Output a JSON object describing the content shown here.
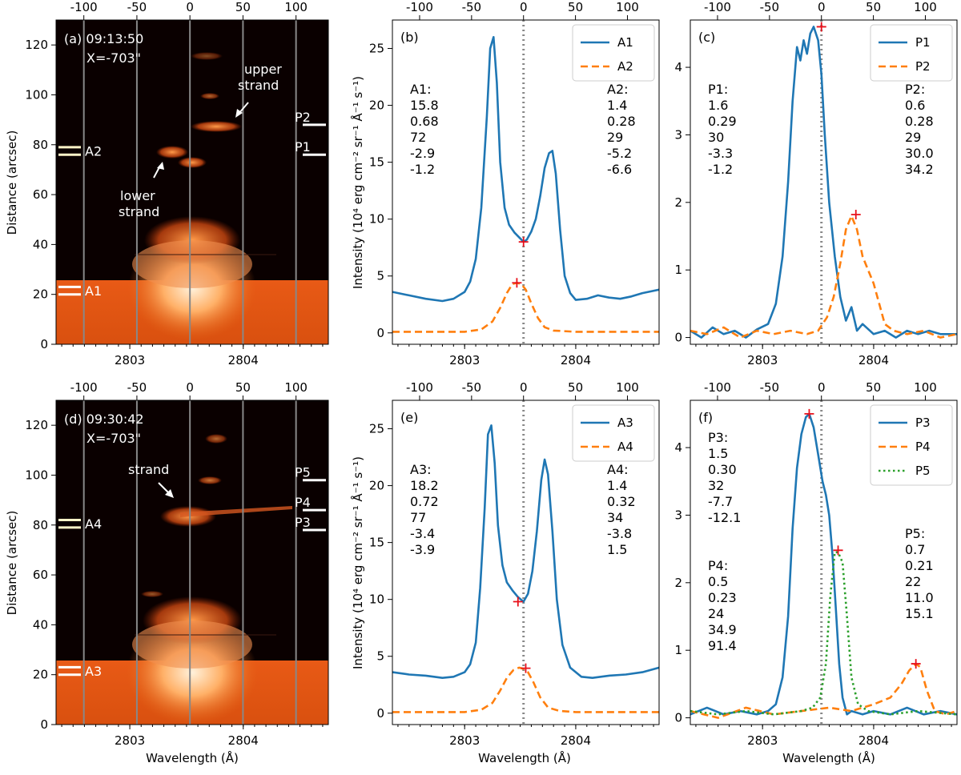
{
  "panels": {
    "a": {
      "label": "(a)",
      "time": "09:13:50",
      "x": "X=-703\"",
      "notes": [
        "upper strand",
        "lower strand"
      ],
      "markers": [
        {
          "label": "A1",
          "y": [
            20,
            23
          ],
          "color": "#ffffff"
        },
        {
          "label": "A2",
          "y": [
            76,
            79
          ],
          "color": "#fff3c8"
        }
      ],
      "plabels": [
        {
          "label": "P2",
          "y": 88
        },
        {
          "label": "P1",
          "y": 76
        }
      ]
    },
    "d": {
      "label": "(d)",
      "time": "09:30:42",
      "x": "X=-703\"",
      "notes": [
        "strand"
      ],
      "markers": [
        {
          "label": "A3",
          "y": [
            20,
            23
          ],
          "color": "#ffffff"
        },
        {
          "label": "A4",
          "y": [
            79,
            82
          ],
          "color": "#fff3c8"
        }
      ],
      "plabels": [
        {
          "label": "P5",
          "y": 98
        },
        {
          "label": "P4",
          "y": 86
        },
        {
          "label": "P3",
          "y": 78
        }
      ]
    },
    "b": {
      "label": "(b)",
      "stats": [
        {
          "title": "A1:",
          "lines": [
            "15.8",
            "0.68",
            "72",
            "-2.9",
            "-1.2"
          ]
        },
        {
          "title": "A2:",
          "lines": [
            "1.4",
            "0.28",
            "29",
            "-5.2",
            "-6.6"
          ]
        }
      ]
    },
    "c": {
      "label": "(c)",
      "stats": [
        {
          "title": "P1:",
          "lines": [
            "1.6",
            "0.29",
            "30",
            "-3.3",
            "-1.2"
          ]
        },
        {
          "title": "P2:",
          "lines": [
            "0.6",
            "0.28",
            "29",
            "30.0",
            "34.2"
          ]
        }
      ]
    },
    "e": {
      "label": "(e)",
      "stats": [
        {
          "title": "A3:",
          "lines": [
            "18.2",
            "0.72",
            "77",
            "-3.4",
            "-3.9"
          ]
        },
        {
          "title": "A4:",
          "lines": [
            "1.4",
            "0.32",
            "34",
            "-3.8",
            "1.5"
          ]
        }
      ]
    },
    "f": {
      "label": "(f)",
      "stats": [
        {
          "title": "P3:",
          "lines": [
            "1.5",
            "0.30",
            "32",
            "-7.7",
            "-12.1"
          ]
        },
        {
          "title": "P4:",
          "lines": [
            "0.5",
            "0.23",
            "24",
            "34.9",
            "91.4"
          ]
        },
        {
          "title": "P5:",
          "lines": [
            "0.7",
            "0.21",
            "22",
            "11.0",
            "15.1"
          ]
        }
      ]
    }
  },
  "axis_titles": {
    "ydistance": "Distance (arcsec)",
    "xwave": "Wavelength (Å)",
    "yintensity": "Intensity (10⁴ erg cm⁻² sr⁻¹ Å⁻¹ s⁻¹)"
  },
  "colors": {
    "blue": "#1f77b4",
    "orange": "#ff7f0e",
    "green": "#2ca02c",
    "red": "#e8101a",
    "gray": "#888888"
  },
  "chart_data": [
    {
      "type": "heatmap",
      "panel": "a",
      "xlabel": "Wavelength (Å)",
      "ylabel": "Distance (arcsec)",
      "xlim": [
        2802.35,
        2804.75
      ],
      "ylim": [
        0,
        130
      ],
      "xticks": [
        2803,
        2804
      ],
      "yticks": [
        0,
        20,
        40,
        60,
        80,
        100,
        120
      ],
      "top_xticks": [
        -100,
        -50,
        0,
        50,
        100
      ],
      "velocity_lines_kms": [
        -100,
        -50,
        0,
        50,
        100
      ]
    },
    {
      "type": "heatmap",
      "panel": "d",
      "xlabel": "Wavelength (Å)",
      "ylabel": "Distance (arcsec)",
      "xlim": [
        2802.35,
        2804.75
      ],
      "ylim": [
        0,
        130
      ],
      "xticks": [
        2803,
        2804
      ],
      "yticks": [
        0,
        20,
        40,
        60,
        80,
        100,
        120
      ],
      "top_xticks": [
        -100,
        -50,
        0,
        50,
        100
      ],
      "velocity_lines_kms": [
        -100,
        -50,
        0,
        50,
        100
      ]
    },
    {
      "type": "line",
      "panel": "b",
      "xlim": [
        2802.35,
        2804.75
      ],
      "ylim": [
        -1,
        27.5
      ],
      "yticks": [
        0,
        5,
        10,
        15,
        20,
        25
      ],
      "xticks": [
        2803,
        2804
      ],
      "top_xticks": [
        -100,
        -50,
        0,
        50,
        100
      ],
      "zero_line": 2803.53,
      "series": [
        {
          "name": "A1",
          "style": "solid",
          "color": "#1f77b4",
          "x": [
            2802.35,
            2802.5,
            2802.65,
            2802.8,
            2802.9,
            2803.0,
            2803.05,
            2803.1,
            2803.15,
            2803.2,
            2803.23,
            2803.26,
            2803.29,
            2803.32,
            2803.36,
            2803.4,
            2803.45,
            2803.5,
            2803.53,
            2803.56,
            2803.6,
            2803.64,
            2803.68,
            2803.72,
            2803.76,
            2803.79,
            2803.82,
            2803.86,
            2803.9,
            2803.95,
            2804.0,
            2804.1,
            2804.2,
            2804.3,
            2804.4,
            2804.5,
            2804.6,
            2804.75
          ],
          "y": [
            3.6,
            3.3,
            3.0,
            2.8,
            3.0,
            3.6,
            4.5,
            6.5,
            11,
            19,
            25,
            26,
            22,
            15,
            11,
            9.5,
            8.8,
            8.3,
            8.0,
            8.2,
            8.9,
            10,
            12,
            14.5,
            15.8,
            16,
            14,
            9,
            5,
            3.5,
            2.9,
            3.0,
            3.3,
            3.1,
            3.0,
            3.2,
            3.5,
            3.8
          ]
        },
        {
          "name": "A2",
          "style": "dashed",
          "color": "#ff7f0e",
          "x": [
            2802.35,
            2803.0,
            2803.15,
            2803.25,
            2803.32,
            2803.38,
            2803.43,
            2803.47,
            2803.51,
            2803.55,
            2803.6,
            2803.66,
            2803.72,
            2803.8,
            2804.0,
            2804.75
          ],
          "y": [
            0.1,
            0.1,
            0.3,
            1.0,
            2.2,
            3.5,
            4.3,
            4.4,
            4.3,
            3.8,
            2.6,
            1.3,
            0.5,
            0.2,
            0.1,
            0.1
          ]
        }
      ],
      "peaks": [
        {
          "x": 2803.53,
          "y": 8.0
        },
        {
          "x": 2803.47,
          "y": 4.4
        }
      ]
    },
    {
      "type": "line",
      "panel": "c",
      "xlim": [
        2802.35,
        2804.75
      ],
      "ylim": [
        -0.1,
        4.7
      ],
      "yticks": [
        0,
        1,
        2,
        3,
        4
      ],
      "xticks": [
        2803,
        2804
      ],
      "top_xticks": [
        -100,
        -50,
        0,
        50,
        100
      ],
      "zero_line": 2803.53,
      "series": [
        {
          "name": "P1",
          "style": "solid",
          "color": "#1f77b4",
          "x": [
            2802.35,
            2802.45,
            2802.55,
            2802.65,
            2802.75,
            2802.85,
            2802.95,
            2803.05,
            2803.12,
            2803.18,
            2803.23,
            2803.27,
            2803.31,
            2803.34,
            2803.37,
            2803.4,
            2803.43,
            2803.46,
            2803.5,
            2803.53,
            2803.56,
            2803.6,
            2803.65,
            2803.7,
            2803.75,
            2803.8,
            2803.85,
            2803.9,
            2804.0,
            2804.1,
            2804.2,
            2804.3,
            2804.4,
            2804.5,
            2804.6,
            2804.75
          ],
          "y": [
            0.1,
            0.0,
            0.15,
            0.05,
            0.1,
            0.0,
            0.12,
            0.2,
            0.5,
            1.2,
            2.3,
            3.5,
            4.3,
            4.1,
            4.4,
            4.2,
            4.5,
            4.6,
            4.4,
            3.9,
            3.0,
            2.0,
            1.2,
            0.6,
            0.25,
            0.45,
            0.1,
            0.2,
            0.05,
            0.1,
            0.0,
            0.1,
            0.05,
            0.1,
            0.05,
            0.05
          ]
        },
        {
          "name": "P2",
          "style": "dashed",
          "color": "#ff7f0e",
          "x": [
            2802.35,
            2802.5,
            2802.65,
            2802.8,
            2802.95,
            2803.1,
            2803.25,
            2803.4,
            2803.5,
            2803.58,
            2803.64,
            2803.7,
            2803.75,
            2803.8,
            2803.85,
            2803.9,
            2803.95,
            2804.0,
            2804.05,
            2804.1,
            2804.18,
            2804.3,
            2804.45,
            2804.6,
            2804.75
          ],
          "y": [
            0.1,
            0.05,
            0.15,
            0.0,
            0.1,
            0.05,
            0.1,
            0.05,
            0.1,
            0.3,
            0.6,
            1.1,
            1.6,
            1.8,
            1.6,
            1.2,
            1.0,
            0.8,
            0.5,
            0.2,
            0.1,
            0.05,
            0.1,
            0.0,
            0.05
          ]
        }
      ],
      "peaks": [
        {
          "x": 2803.53,
          "y": 4.6
        },
        {
          "x": 2803.84,
          "y": 1.82
        }
      ]
    },
    {
      "type": "line",
      "panel": "e",
      "xlim": [
        2802.35,
        2804.75
      ],
      "ylim": [
        -1,
        27.5
      ],
      "yticks": [
        0,
        5,
        10,
        15,
        20,
        25
      ],
      "xticks": [
        2803,
        2804
      ],
      "top_xticks": [
        -100,
        -50,
        0,
        50,
        100
      ],
      "zero_line": 2803.53,
      "series": [
        {
          "name": "A3",
          "style": "solid",
          "color": "#1f77b4",
          "x": [
            2802.35,
            2802.5,
            2802.65,
            2802.8,
            2802.9,
            2803.0,
            2803.05,
            2803.1,
            2803.14,
            2803.18,
            2803.21,
            2803.24,
            2803.27,
            2803.3,
            2803.34,
            2803.38,
            2803.43,
            2803.48,
            2803.53,
            2803.57,
            2803.61,
            2803.65,
            2803.69,
            2803.72,
            2803.75,
            2803.79,
            2803.83,
            2803.88,
            2803.95,
            2804.05,
            2804.15,
            2804.3,
            2804.45,
            2804.6,
            2804.75
          ],
          "y": [
            3.6,
            3.4,
            3.3,
            3.1,
            3.2,
            3.6,
            4.3,
            6.2,
            11,
            18,
            24.5,
            25.3,
            22,
            16.5,
            13,
            11.5,
            10.8,
            10.2,
            9.8,
            10.5,
            12.5,
            16,
            20.5,
            22.3,
            21,
            16,
            10,
            6,
            4.0,
            3.2,
            3.1,
            3.3,
            3.4,
            3.6,
            4.0
          ]
        },
        {
          "name": "A4",
          "style": "dashed",
          "color": "#ff7f0e",
          "x": [
            2802.35,
            2803.0,
            2803.15,
            2803.25,
            2803.32,
            2803.38,
            2803.44,
            2803.49,
            2803.53,
            2803.57,
            2803.62,
            2803.68,
            2803.75,
            2803.85,
            2804.0,
            2804.75
          ],
          "y": [
            0.1,
            0.1,
            0.3,
            0.9,
            2.0,
            3.1,
            3.8,
            4.0,
            3.9,
            3.6,
            2.7,
            1.4,
            0.5,
            0.2,
            0.1,
            0.1
          ]
        }
      ],
      "peaks": [
        {
          "x": 2803.48,
          "y": 9.8
        },
        {
          "x": 2803.55,
          "y": 3.95
        }
      ]
    },
    {
      "type": "line",
      "panel": "f",
      "xlim": [
        2802.35,
        2804.75
      ],
      "ylim": [
        -0.1,
        4.7
      ],
      "yticks": [
        0,
        1,
        2,
        3,
        4
      ],
      "xticks": [
        2803,
        2804
      ],
      "top_xticks": [
        -100,
        -50,
        0,
        50,
        100
      ],
      "zero_line": 2803.53,
      "series": [
        {
          "name": "P3",
          "style": "solid",
          "color": "#1f77b4",
          "x": [
            2802.35,
            2802.5,
            2802.65,
            2802.8,
            2802.95,
            2803.05,
            2803.12,
            2803.18,
            2803.23,
            2803.27,
            2803.31,
            2803.35,
            2803.39,
            2803.42,
            2803.46,
            2803.5,
            2803.54,
            2803.57,
            2803.6,
            2803.63,
            2803.66,
            2803.69,
            2803.72,
            2803.76,
            2803.8,
            2803.9,
            2804.0,
            2804.15,
            2804.3,
            2804.45,
            2804.6,
            2804.75
          ],
          "y": [
            0.05,
            0.15,
            0.05,
            0.1,
            0.05,
            0.1,
            0.2,
            0.6,
            1.5,
            2.8,
            3.7,
            4.2,
            4.45,
            4.5,
            4.3,
            3.9,
            3.5,
            3.3,
            3.0,
            2.4,
            1.6,
            0.8,
            0.3,
            0.05,
            0.1,
            0.05,
            0.1,
            0.05,
            0.15,
            0.05,
            0.1,
            0.05
          ]
        },
        {
          "name": "P4",
          "style": "dashed",
          "color": "#ff7f0e",
          "x": [
            2802.35,
            2802.6,
            2802.85,
            2803.1,
            2803.35,
            2803.6,
            2803.8,
            2804.0,
            2804.15,
            2804.25,
            2804.32,
            2804.38,
            2804.42,
            2804.48,
            2804.55,
            2804.65,
            2804.75
          ],
          "y": [
            0.1,
            0.0,
            0.15,
            0.05,
            0.1,
            0.15,
            0.1,
            0.2,
            0.3,
            0.5,
            0.7,
            0.8,
            0.75,
            0.4,
            0.1,
            0.05,
            0.1
          ]
        },
        {
          "name": "P5",
          "style": "dotted",
          "color": "#2ca02c",
          "x": [
            2802.35,
            2802.6,
            2802.85,
            2803.1,
            2803.35,
            2803.45,
            2803.52,
            2803.57,
            2803.61,
            2803.65,
            2803.68,
            2803.72,
            2803.76,
            2803.8,
            2803.86,
            2803.95,
            2804.15,
            2804.4,
            2804.75
          ],
          "y": [
            0.1,
            0.05,
            0.1,
            0.05,
            0.1,
            0.15,
            0.3,
            0.8,
            1.8,
            2.45,
            2.45,
            2.3,
            1.5,
            0.6,
            0.2,
            0.1,
            0.05,
            0.1,
            0.05
          ]
        }
      ],
      "peaks": [
        {
          "x": 2803.42,
          "y": 4.5
        },
        {
          "x": 2804.38,
          "y": 0.8
        },
        {
          "x": 2803.68,
          "y": 2.48
        }
      ]
    }
  ]
}
